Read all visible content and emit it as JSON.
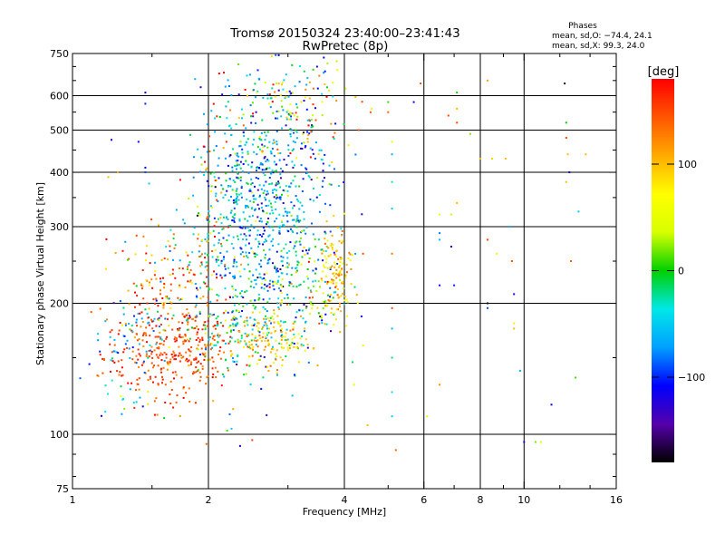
{
  "chart_data": {
    "type": "scatter",
    "title": "Tromsø 20150324 23:40:00–23:41:43",
    "subtitle": "RwPretec (8p)",
    "xlabel": "Frequency [MHz]",
    "ylabel": "Stationary phase Virtual Height [km]",
    "x_scale": "log",
    "y_scale": "log",
    "xlim": [
      1,
      16
    ],
    "ylim": [
      75,
      750
    ],
    "x_ticks": [
      1,
      2,
      4,
      6,
      8,
      10,
      16
    ],
    "x_grid": [
      2,
      4,
      6,
      8,
      10
    ],
    "x_minor_ticks": [
      1.5,
      3,
      5,
      7,
      9,
      12,
      14
    ],
    "y_ticks": [
      75,
      100,
      200,
      300,
      400,
      500,
      600,
      750
    ],
    "y_grid": [
      100,
      200,
      300,
      400,
      500,
      600
    ],
    "grid": true,
    "legend": {
      "title": "Phases",
      "lines": [
        "mean, sd,O: −74.4, 24.1",
        "mean, sd,X:  99.3, 24.0"
      ],
      "placement": "top-right"
    },
    "colorbar": {
      "label": "[deg]",
      "range": [
        -180,
        180
      ],
      "ticks": [
        100,
        0,
        -100
      ],
      "colormap": [
        "#000000",
        "#5500aa",
        "#0000ff",
        "#00a0ff",
        "#00e8e8",
        "#00d000",
        "#d8ff00",
        "#ffff00",
        "#ffaa00",
        "#ff5500",
        "#ff0000"
      ]
    },
    "clusters": [
      {
        "x": 1.62,
        "y": 150,
        "sx": 0.07,
        "sy": 0.05,
        "n": 260,
        "phase": 150,
        "sp": 22
      },
      {
        "x": 1.35,
        "y": 170,
        "sx": 0.05,
        "sy": 0.04,
        "n": 60,
        "phase": -60,
        "sp": 30
      },
      {
        "x": 1.85,
        "y": 175,
        "sx": 0.05,
        "sy": 0.05,
        "n": 90,
        "phase": 140,
        "sp": 30
      },
      {
        "x": 1.55,
        "y": 225,
        "sx": 0.06,
        "sy": 0.06,
        "n": 110,
        "phase": 130,
        "sp": 45
      },
      {
        "x": 2.35,
        "y": 175,
        "sx": 0.06,
        "sy": 0.05,
        "n": 140,
        "phase": -25,
        "sp": 35
      },
      {
        "x": 2.4,
        "y": 265,
        "sx": 0.07,
        "sy": 0.12,
        "n": 340,
        "phase": -50,
        "sp": 45
      },
      {
        "x": 2.5,
        "y": 400,
        "sx": 0.06,
        "sy": 0.1,
        "n": 260,
        "phase": -55,
        "sp": 40
      },
      {
        "x": 3.0,
        "y": 330,
        "sx": 0.06,
        "sy": 0.17,
        "n": 300,
        "phase": -85,
        "sp": 35
      },
      {
        "x": 2.8,
        "y": 165,
        "sx": 0.04,
        "sy": 0.035,
        "n": 120,
        "phase": 100,
        "sp": 22
      },
      {
        "x": 3.3,
        "y": 220,
        "sx": 0.05,
        "sy": 0.06,
        "n": 120,
        "phase": 30,
        "sp": 60
      },
      {
        "x": 3.85,
        "y": 235,
        "sx": 0.02,
        "sy": 0.05,
        "n": 110,
        "phase": 95,
        "sp": 25
      },
      {
        "x": 3.2,
        "y": 550,
        "sx": 0.06,
        "sy": 0.06,
        "n": 110,
        "phase": 60,
        "sp": 90
      },
      {
        "x": 1.28,
        "y": 118,
        "sx": 0.03,
        "sy": 0.02,
        "n": 18,
        "phase": -20,
        "sp": 40
      },
      {
        "x": 2.05,
        "y": 300,
        "sx": 0.03,
        "sy": 0.15,
        "n": 70,
        "phase": 120,
        "sp": 60
      }
    ],
    "points": [
      {
        "x": 1.45,
        "y": 610,
        "phase": -110
      },
      {
        "x": 1.45,
        "y": 575,
        "phase": -100
      },
      {
        "x": 1.4,
        "y": 470,
        "phase": -120
      },
      {
        "x": 1.45,
        "y": 410,
        "phase": -110
      },
      {
        "x": 1.45,
        "y": 400,
        "phase": -90
      },
      {
        "x": 1.22,
        "y": 475,
        "phase": -120
      },
      {
        "x": 1.26,
        "y": 400,
        "phase": 110
      },
      {
        "x": 1.2,
        "y": 390,
        "phase": 100
      },
      {
        "x": 1.15,
        "y": 155,
        "phase": -100
      },
      {
        "x": 1.09,
        "y": 145,
        "phase": -110
      },
      {
        "x": 5.0,
        "y": 580,
        "phase": 10
      },
      {
        "x": 5.0,
        "y": 550,
        "phase": 140
      },
      {
        "x": 5.1,
        "y": 470,
        "phase": 60
      },
      {
        "x": 5.1,
        "y": 440,
        "phase": -60
      },
      {
        "x": 5.1,
        "y": 380,
        "phase": -30
      },
      {
        "x": 5.1,
        "y": 330,
        "phase": -50
      },
      {
        "x": 5.1,
        "y": 260,
        "phase": 130
      },
      {
        "x": 5.1,
        "y": 195,
        "phase": 150
      },
      {
        "x": 5.1,
        "y": 175,
        "phase": -60
      },
      {
        "x": 5.1,
        "y": 150,
        "phase": -20
      },
      {
        "x": 5.1,
        "y": 125,
        "phase": -40
      },
      {
        "x": 5.1,
        "y": 110,
        "phase": -50
      },
      {
        "x": 5.2,
        "y": 92,
        "phase": 140
      },
      {
        "x": 4.6,
        "y": 560,
        "phase": 80
      },
      {
        "x": 4.3,
        "y": 500,
        "phase": 150
      },
      {
        "x": 4.4,
        "y": 260,
        "phase": 150
      },
      {
        "x": 4.4,
        "y": 160,
        "phase": 80
      },
      {
        "x": 4.5,
        "y": 105,
        "phase": 100
      },
      {
        "x": 4.2,
        "y": 130,
        "phase": 60
      },
      {
        "x": 5.9,
        "y": 640,
        "phase": 150
      },
      {
        "x": 5.7,
        "y": 580,
        "phase": -110
      },
      {
        "x": 6.1,
        "y": 110,
        "phase": 40
      },
      {
        "x": 6.5,
        "y": 320,
        "phase": 60
      },
      {
        "x": 6.5,
        "y": 290,
        "phase": -80
      },
      {
        "x": 6.5,
        "y": 280,
        "phase": -60
      },
      {
        "x": 6.5,
        "y": 130,
        "phase": 120
      },
      {
        "x": 6.5,
        "y": 220,
        "phase": -110
      },
      {
        "x": 6.8,
        "y": 540,
        "phase": 150
      },
      {
        "x": 6.9,
        "y": 320,
        "phase": 40
      },
      {
        "x": 6.9,
        "y": 270,
        "phase": -110
      },
      {
        "x": 7.0,
        "y": 220,
        "phase": -100
      },
      {
        "x": 7.1,
        "y": 610,
        "phase": 0
      },
      {
        "x": 7.1,
        "y": 560,
        "phase": 100
      },
      {
        "x": 7.1,
        "y": 520,
        "phase": 150
      },
      {
        "x": 7.1,
        "y": 340,
        "phase": 100
      },
      {
        "x": 7.6,
        "y": 490,
        "phase": 20
      },
      {
        "x": 8.3,
        "y": 650,
        "phase": 110
      },
      {
        "x": 8.0,
        "y": 430,
        "phase": 100
      },
      {
        "x": 8.5,
        "y": 430,
        "phase": 90
      },
      {
        "x": 8.3,
        "y": 280,
        "phase": 150
      },
      {
        "x": 8.3,
        "y": 200,
        "phase": -170
      },
      {
        "x": 8.3,
        "y": 195,
        "phase": -90
      },
      {
        "x": 8.7,
        "y": 260,
        "phase": 60
      },
      {
        "x": 9.1,
        "y": 430,
        "phase": 100
      },
      {
        "x": 9.3,
        "y": 300,
        "phase": -60
      },
      {
        "x": 9.4,
        "y": 250,
        "phase": 150
      },
      {
        "x": 9.5,
        "y": 210,
        "phase": -120
      },
      {
        "x": 9.5,
        "y": 180,
        "phase": 80
      },
      {
        "x": 9.5,
        "y": 175,
        "phase": 100
      },
      {
        "x": 9.8,
        "y": 140,
        "phase": -60
      },
      {
        "x": 10.0,
        "y": 96,
        "phase": -120
      },
      {
        "x": 10.6,
        "y": 96,
        "phase": 20
      },
      {
        "x": 10.9,
        "y": 96,
        "phase": 40
      },
      {
        "x": 11.5,
        "y": 117,
        "phase": -110
      },
      {
        "x": 12.3,
        "y": 640,
        "phase": -170
      },
      {
        "x": 12.4,
        "y": 520,
        "phase": 0
      },
      {
        "x": 12.4,
        "y": 480,
        "phase": 150
      },
      {
        "x": 12.5,
        "y": 440,
        "phase": 100
      },
      {
        "x": 12.6,
        "y": 400,
        "phase": -110
      },
      {
        "x": 12.4,
        "y": 380,
        "phase": 100
      },
      {
        "x": 12.7,
        "y": 250,
        "phase": 140
      },
      {
        "x": 13.7,
        "y": 440,
        "phase": 100
      },
      {
        "x": 13.2,
        "y": 325,
        "phase": -50
      },
      {
        "x": 13.0,
        "y": 135,
        "phase": 10
      },
      {
        "x": 2.2,
        "y": 102,
        "phase": 10
      },
      {
        "x": 2.25,
        "y": 103,
        "phase": -50
      },
      {
        "x": 2.35,
        "y": 94,
        "phase": -110
      },
      {
        "x": 2.5,
        "y": 97,
        "phase": 150
      },
      {
        "x": 1.98,
        "y": 95,
        "phase": 140
      }
    ]
  }
}
